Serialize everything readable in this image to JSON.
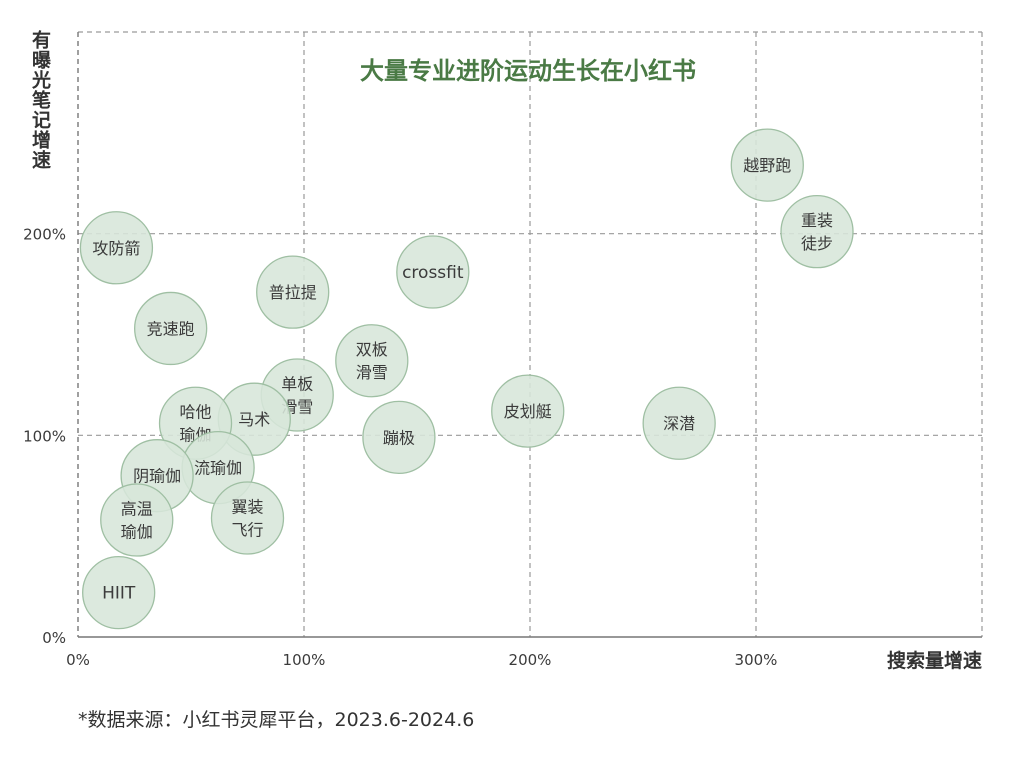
{
  "chart_data": {
    "type": "scatter",
    "title": "大量专业进阶运动生长在小红书",
    "xlabel": "搜索量增速",
    "ylabel": "有曝光笔记增速",
    "x_ticks": [
      "0%",
      "100%",
      "200%",
      "300%"
    ],
    "y_ticks": [
      "0%",
      "100%",
      "200%"
    ],
    "xlim": [
      0,
      400
    ],
    "ylim": [
      0,
      300
    ],
    "grid": true,
    "points": [
      {
        "label": [
          "攻防箭"
        ],
        "x": 17,
        "y": 193
      },
      {
        "label": [
          "竞速跑"
        ],
        "x": 41,
        "y": 153
      },
      {
        "label": [
          "普拉提"
        ],
        "x": 95,
        "y": 171
      },
      {
        "label": [
          "crossfit"
        ],
        "x": 157,
        "y": 181
      },
      {
        "label": [
          "越野跑"
        ],
        "x": 305,
        "y": 234
      },
      {
        "label": [
          "重装",
          "徒步"
        ],
        "x": 327,
        "y": 201
      },
      {
        "label": [
          "双板",
          "滑雪"
        ],
        "x": 130,
        "y": 137
      },
      {
        "label": [
          "单板",
          "滑雪"
        ],
        "x": 97,
        "y": 120
      },
      {
        "label": [
          "马术"
        ],
        "x": 78,
        "y": 108
      },
      {
        "label": [
          "哈他",
          "瑜伽"
        ],
        "x": 52,
        "y": 106
      },
      {
        "label": [
          "皮划艇"
        ],
        "x": 199,
        "y": 112
      },
      {
        "label": [
          "深潜"
        ],
        "x": 266,
        "y": 106
      },
      {
        "label": [
          "蹦极"
        ],
        "x": 142,
        "y": 99
      },
      {
        "label": [
          "流瑜伽"
        ],
        "x": 62,
        "y": 84
      },
      {
        "label": [
          "阴瑜伽"
        ],
        "x": 35,
        "y": 80
      },
      {
        "label": [
          "高温",
          "瑜伽"
        ],
        "x": 26,
        "y": 58
      },
      {
        "label": [
          "翼装",
          "飞行"
        ],
        "x": 75,
        "y": 59
      },
      {
        "label": [
          "HIIT"
        ],
        "x": 18,
        "y": 22
      }
    ]
  },
  "colors": {
    "bubble_fill": "#d7e6d9",
    "bubble_stroke": "#9fbfa3",
    "title": "#4a7a45",
    "grid": "#9a9a9a",
    "axis": "#777777",
    "text": "#3b3b3b"
  },
  "footnote": "*数据来源：小红书灵犀平台，2023.6-2024.6"
}
